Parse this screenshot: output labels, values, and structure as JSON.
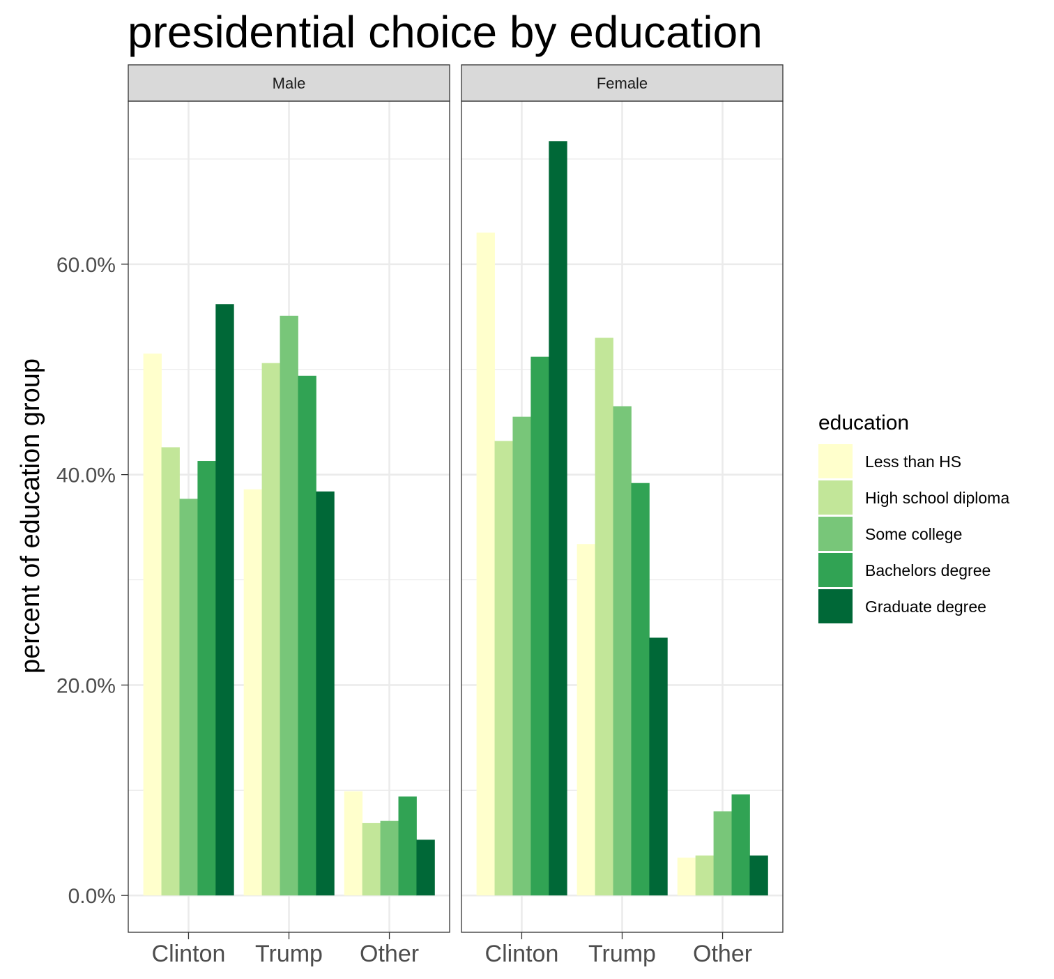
{
  "chart_data": {
    "type": "bar",
    "title": "presidential choice by education",
    "ylabel": "percent of education group",
    "xlabel": "",
    "ylim": [
      -3.5,
      75.5
    ],
    "y_ticks": [
      0,
      20,
      40,
      60
    ],
    "y_tick_labels": [
      "0.0%",
      "20.0%",
      "40.0%",
      "60.0%"
    ],
    "categories": [
      "Clinton",
      "Trump",
      "Other"
    ],
    "grid": true,
    "legend": {
      "title": "education",
      "position": "right"
    },
    "series": [
      {
        "name": "Less than HS",
        "color": "#ffffcc"
      },
      {
        "name": "High school diploma",
        "color": "#c2e699"
      },
      {
        "name": "Some college",
        "color": "#78c679"
      },
      {
        "name": "Bachelors degree",
        "color": "#31a354"
      },
      {
        "name": "Graduate degree",
        "color": "#006837"
      }
    ],
    "panels": [
      {
        "label": "Male",
        "values": [
          [
            51.5,
            38.6,
            9.9
          ],
          [
            42.6,
            50.6,
            6.9
          ],
          [
            37.7,
            55.1,
            7.1
          ],
          [
            41.3,
            49.4,
            9.4
          ],
          [
            56.2,
            38.4,
            5.3
          ]
        ]
      },
      {
        "label": "Female",
        "values": [
          [
            63.0,
            33.4,
            3.6
          ],
          [
            43.2,
            53.0,
            3.8
          ],
          [
            45.5,
            46.5,
            8.0
          ],
          [
            51.2,
            39.2,
            9.6
          ],
          [
            71.7,
            24.5,
            3.8
          ]
        ]
      }
    ]
  }
}
